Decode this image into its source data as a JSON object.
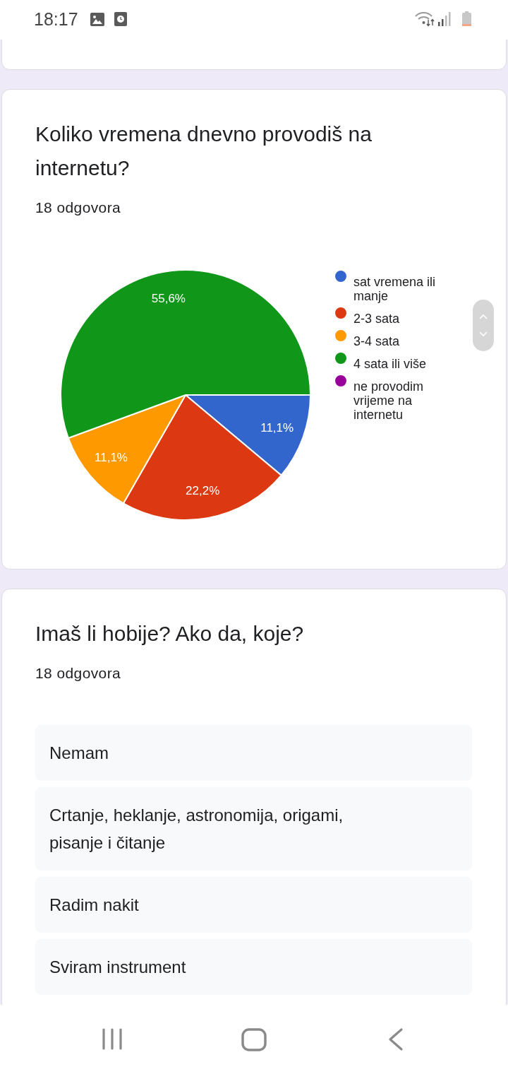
{
  "chart_data": [
    {
      "type": "other",
      "annotations": [
        "18:17"
      ]
    },
    {
      "type": "pie",
      "title": "Koliko vremena dnevno provodiš na internetu?",
      "subtitle": "18 odgovora",
      "categories": [
        "sat vremena ili manje",
        "2-3 sata",
        "3-4 sata",
        "4 sata ili više",
        "ne provodim vrijeme na internetu"
      ],
      "values": [
        11.1,
        22.2,
        11.1,
        55.6,
        0
      ],
      "colors": [
        "#3366cc",
        "#dc3912",
        "#ff9900",
        "#109618",
        "#990099"
      ],
      "value_labels": [
        "11,1%",
        "22,2%",
        "11,1%",
        "55,6%",
        null
      ],
      "legend": "right"
    },
    {
      "type": "other",
      "title": "Imaš li hobije? Ako da, koje?",
      "subtitle": "18 odgovora",
      "annotations": [
        "Nemam",
        "Crtanje, heklanje, astronomija, origami, pisanje i čitanje",
        "Radim nakit",
        "Sviram instrument"
      ]
    }
  ]
}
